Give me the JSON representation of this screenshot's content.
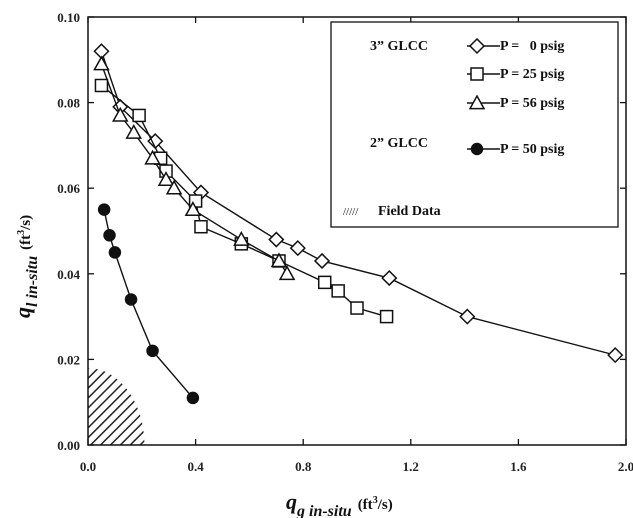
{
  "chart_data": {
    "type": "scatter",
    "xlabel": {
      "symbol": "q",
      "subscript": "g in-situ",
      "unit": "(ft",
      "unit_sup": "3",
      "unit_tail": "/s)"
    },
    "ylabel": {
      "symbol": "q",
      "subscript": "l in-situ",
      "unit": "(ft",
      "unit_sup": "3",
      "unit_tail": "/s)"
    },
    "xlim": [
      0.0,
      2.0
    ],
    "ylim": [
      0.0,
      0.1
    ],
    "xticks": [
      "0.0",
      "0.4",
      "0.8",
      "1.2",
      "1.6",
      "2.0"
    ],
    "yticks": [
      "0.00",
      "0.02",
      "0.04",
      "0.06",
      "0.08",
      "0.10"
    ],
    "grid": false,
    "legend": {
      "placement": "top-right",
      "group_labels": [
        "3” GLCC",
        "2” GLCC"
      ],
      "field_label": "Field Data",
      "field_swatch_text": "/////"
    },
    "series": [
      {
        "name": "P =   0 psig",
        "group": "3” GLCC",
        "marker": "diamond",
        "x": [
          0.05,
          0.12,
          0.25,
          0.42,
          0.7,
          0.78,
          0.87,
          1.12,
          1.41,
          1.96
        ],
        "y": [
          0.092,
          0.079,
          0.071,
          0.059,
          0.048,
          0.046,
          0.043,
          0.039,
          0.03,
          0.021
        ]
      },
      {
        "name": "P = 25 psig",
        "group": "3” GLCC",
        "marker": "square",
        "x": [
          0.05,
          0.19,
          0.27,
          0.29,
          0.4,
          0.42,
          0.57,
          0.71,
          0.88,
          0.93,
          1.0,
          1.11
        ],
        "y": [
          0.084,
          0.077,
          0.067,
          0.064,
          0.057,
          0.051,
          0.047,
          0.043,
          0.038,
          0.036,
          0.032,
          0.03
        ]
      },
      {
        "name": "P = 56 psig",
        "group": "3” GLCC",
        "marker": "triangle",
        "x": [
          0.05,
          0.12,
          0.17,
          0.24,
          0.29,
          0.32,
          0.39,
          0.57,
          0.71,
          0.74
        ],
        "y": [
          0.089,
          0.077,
          0.073,
          0.067,
          0.062,
          0.06,
          0.055,
          0.048,
          0.043,
          0.04
        ]
      },
      {
        "name": "P = 50 psig",
        "group": "2” GLCC",
        "marker": "circle",
        "x": [
          0.06,
          0.08,
          0.1,
          0.16,
          0.24,
          0.39
        ],
        "y": [
          0.055,
          0.049,
          0.045,
          0.034,
          0.022,
          0.011
        ]
      }
    ],
    "field_data_region": {
      "x_max": 0.21,
      "y_max": 0.018
    }
  }
}
